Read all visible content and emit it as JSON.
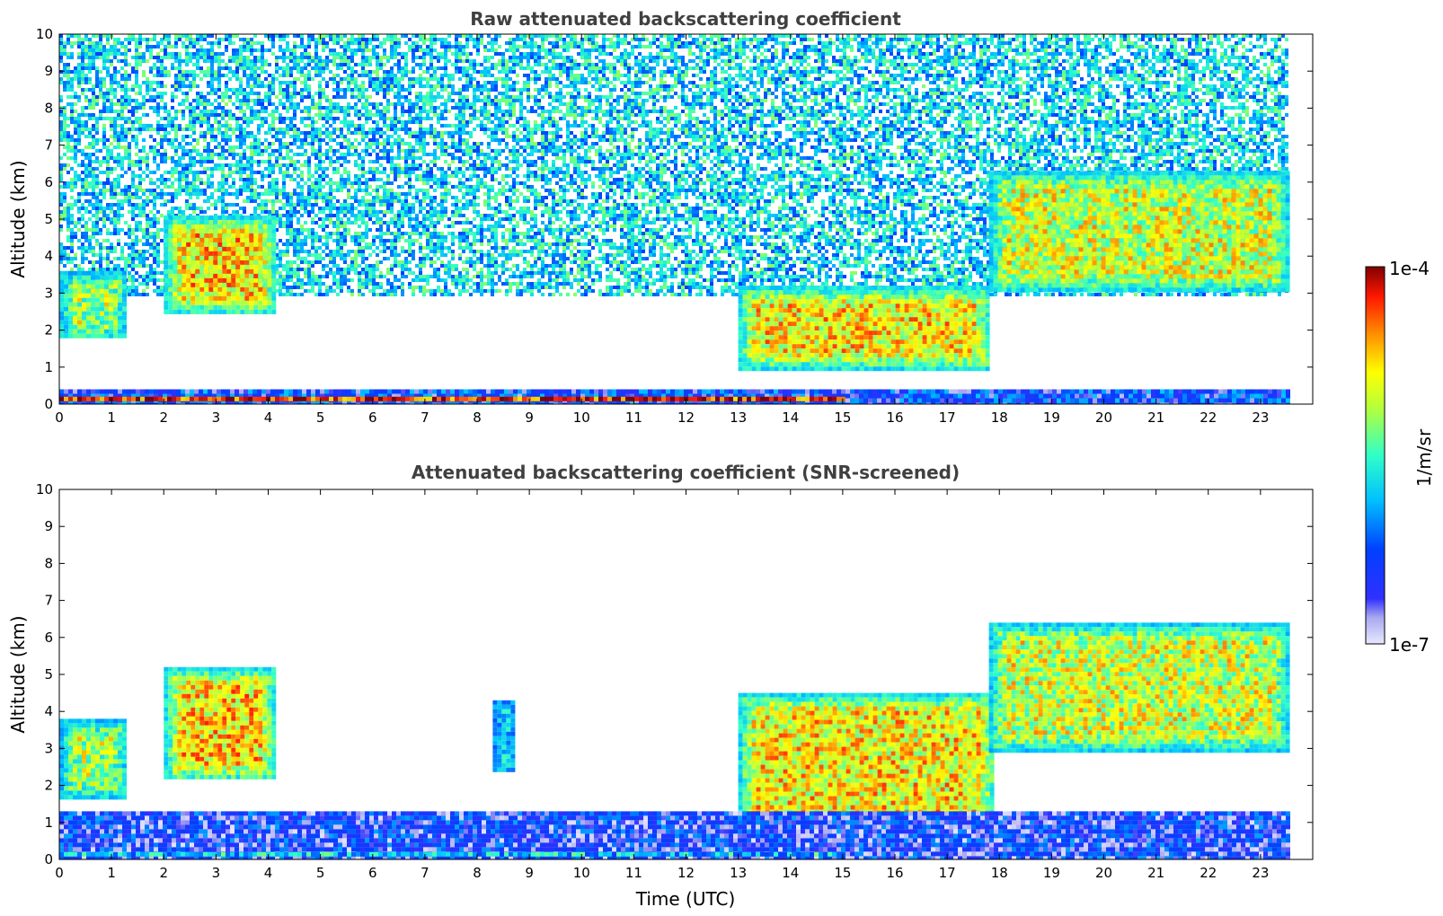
{
  "chart_data": [
    {
      "type": "heatmap",
      "title": "Raw attenuated backscattering coefficient",
      "xlabel": "",
      "ylabel": "Altitude (km)",
      "xlim": [
        0,
        24
      ],
      "ylim": [
        0,
        10
      ],
      "xticks": [
        0,
        1,
        2,
        3,
        4,
        5,
        6,
        7,
        8,
        9,
        10,
        11,
        12,
        13,
        14,
        15,
        16,
        17,
        18,
        19,
        20,
        21,
        22,
        23
      ],
      "yticks": [
        0,
        1,
        2,
        3,
        4,
        5,
        6,
        7,
        8,
        9,
        10
      ],
      "data_extent_hours": [
        0,
        23.5
      ],
      "regions": [
        {
          "name": "noise",
          "x": [
            0,
            23.5
          ],
          "y": [
            3,
            10
          ],
          "level": 0.42
        },
        {
          "name": "cloud",
          "x": [
            0,
            1.25
          ],
          "y": [
            1.8,
            3.6
          ],
          "level": 0.62
        },
        {
          "name": "cloud",
          "x": [
            2.0,
            4.1
          ],
          "y": [
            2.5,
            5.1
          ],
          "level": 0.74
        },
        {
          "name": "cloud",
          "x": [
            13.0,
            17.8
          ],
          "y": [
            1.0,
            3.2
          ],
          "level": 0.72
        },
        {
          "name": "cloud",
          "x": [
            17.8,
            23.5
          ],
          "y": [
            3.1,
            6.3
          ],
          "level": 0.66
        },
        {
          "name": "boundary-layer",
          "x": [
            0,
            23.5
          ],
          "y": [
            0,
            0.4
          ],
          "level": 0.22
        },
        {
          "name": "surface-layer",
          "x": [
            0,
            15.0
          ],
          "y": [
            0.1,
            0.2
          ],
          "level": 0.92
        }
      ]
    },
    {
      "type": "heatmap",
      "title": "Attenuated backscattering coefficient (SNR-screened)",
      "xlabel": "Time (UTC)",
      "ylabel": "Altitude (km)",
      "xlim": [
        0,
        24
      ],
      "ylim": [
        0,
        10
      ],
      "xticks": [
        0,
        1,
        2,
        3,
        4,
        5,
        6,
        7,
        8,
        9,
        10,
        11,
        12,
        13,
        14,
        15,
        16,
        17,
        18,
        19,
        20,
        21,
        22,
        23
      ],
      "yticks": [
        0,
        1,
        2,
        3,
        4,
        5,
        6,
        7,
        8,
        9,
        10
      ],
      "data_extent_hours": [
        0,
        23.5
      ],
      "regions": [
        {
          "name": "cloud",
          "x": [
            0,
            1.25
          ],
          "y": [
            1.7,
            3.8
          ],
          "level": 0.62
        },
        {
          "name": "cloud",
          "x": [
            2.0,
            4.1
          ],
          "y": [
            2.2,
            5.2
          ],
          "level": 0.74
        },
        {
          "name": "cloud",
          "x": [
            8.3,
            8.7
          ],
          "y": [
            2.4,
            4.3
          ],
          "level": 0.45
        },
        {
          "name": "cloud",
          "x": [
            13.0,
            17.9
          ],
          "y": [
            0.9,
            4.5
          ],
          "level": 0.72
        },
        {
          "name": "cloud",
          "x": [
            17.8,
            23.5
          ],
          "y": [
            3.0,
            6.4
          ],
          "level": 0.66
        },
        {
          "name": "boundary-layer",
          "x": [
            0,
            23.5
          ],
          "y": [
            0,
            1.3
          ],
          "level": 0.18
        },
        {
          "name": "surface-layer",
          "x": [
            0,
            15.0
          ],
          "y": [
            0.1,
            0.2
          ],
          "level": 0.4
        }
      ]
    }
  ],
  "colorbar": {
    "label": "1/m/sr",
    "max_label": "1e-4",
    "min_label": "1e-7",
    "colormap": "jet"
  }
}
